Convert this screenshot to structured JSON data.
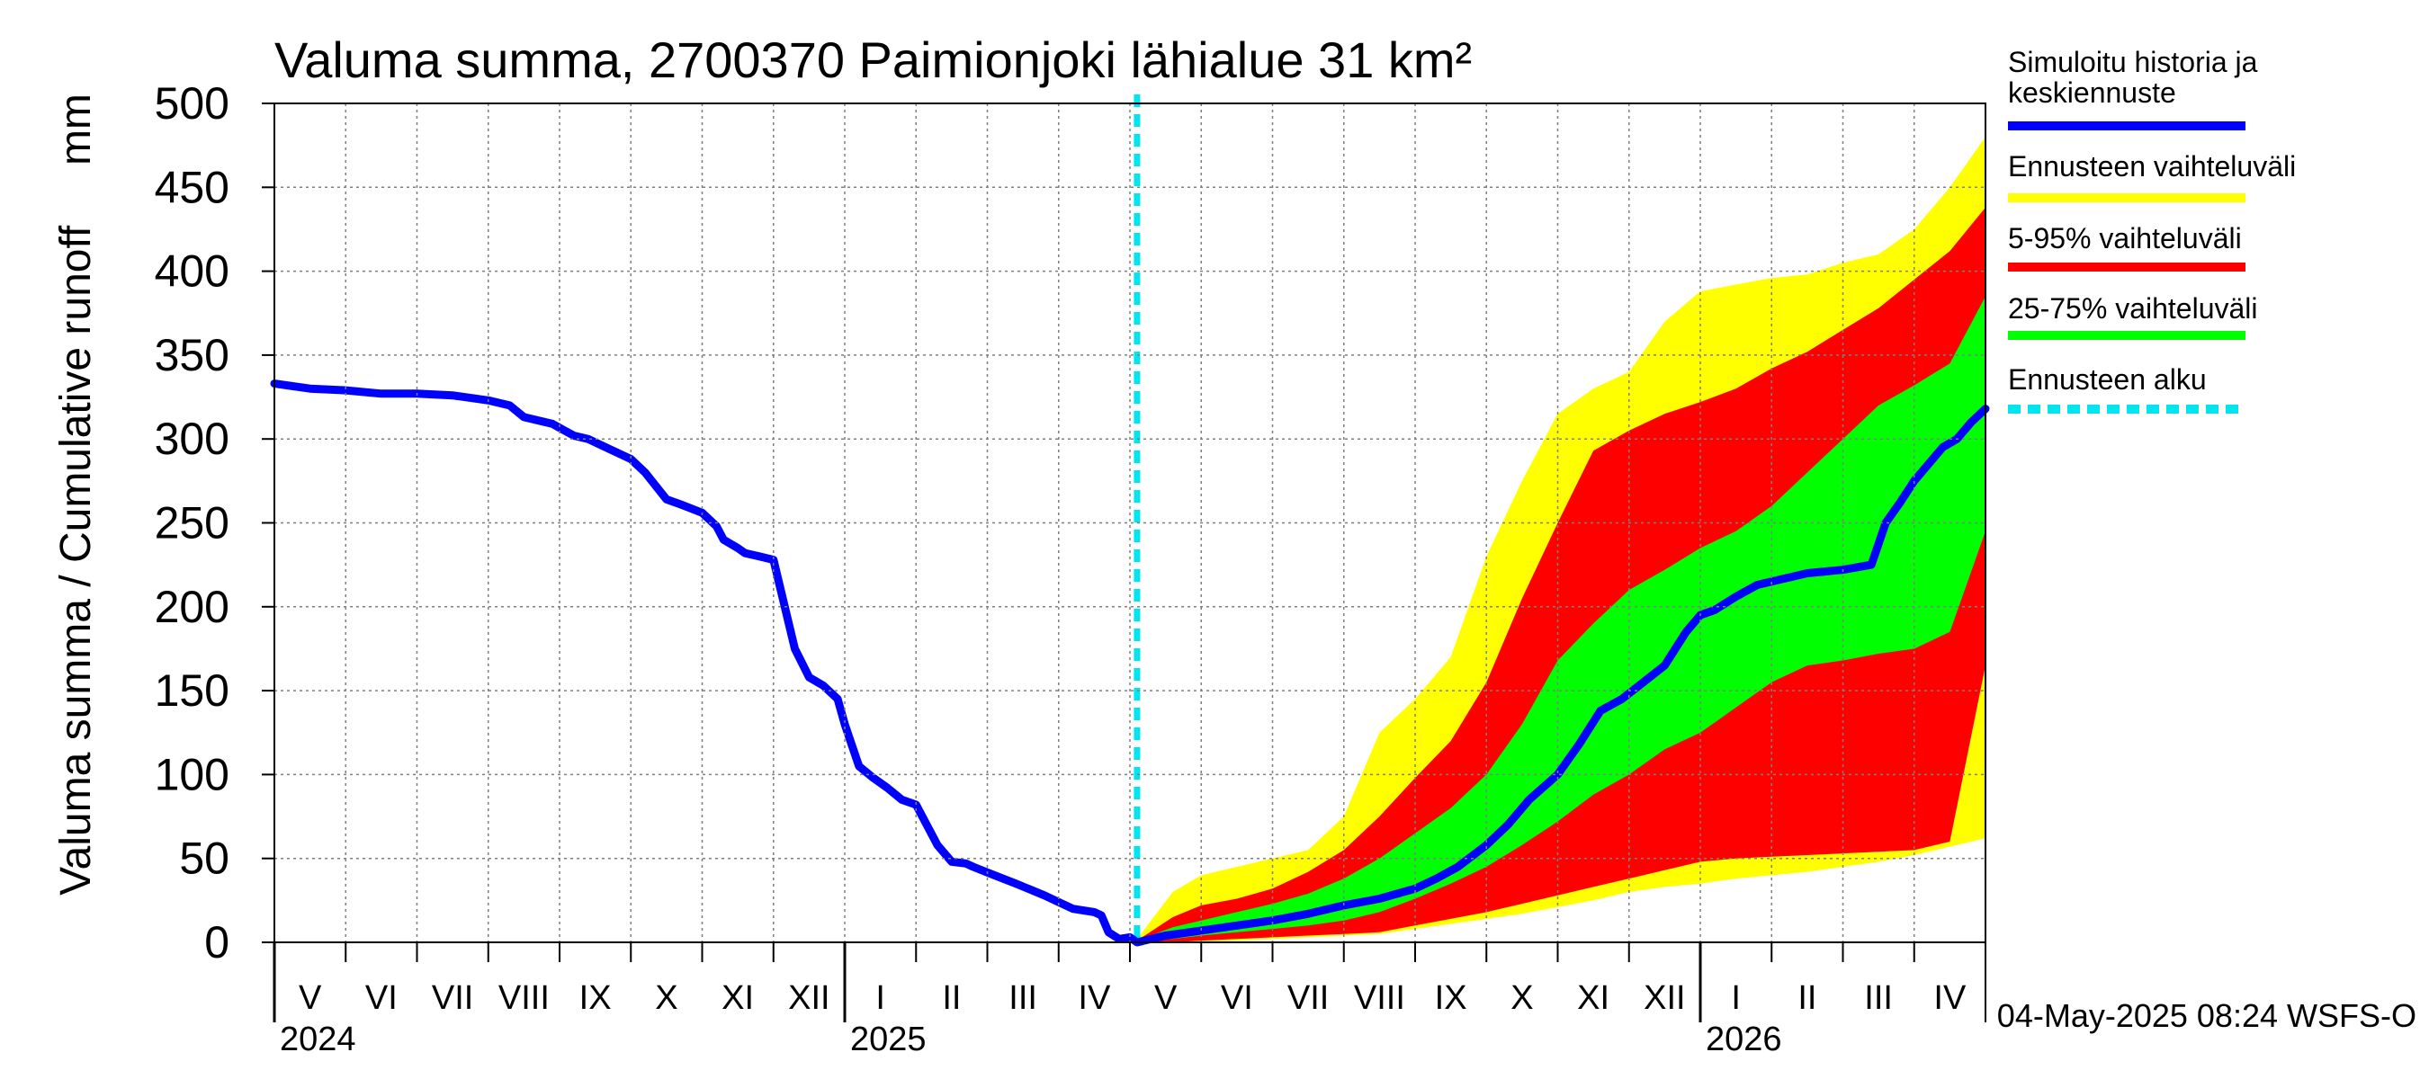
{
  "chart_data": {
    "type": "area",
    "title": "Valuma summa, 2700370 Paimionjoki lähialue 31 km²",
    "ylabel": "Valuma summa / Cumulative runoff     mm",
    "ylim": [
      0,
      500
    ],
    "yticks": [
      0,
      50,
      100,
      150,
      200,
      250,
      300,
      350,
      400,
      450,
      500
    ],
    "xlim_months": [
      0,
      24
    ],
    "month_labels": [
      "V",
      "VI",
      "VII",
      "VIII",
      "IX",
      "X",
      "XI",
      "XII",
      "I",
      "II",
      "III",
      "IV",
      "V",
      "VI",
      "VII",
      "VIII",
      "IX",
      "X",
      "XI",
      "XII",
      "I",
      "II",
      "III",
      "IV"
    ],
    "years": [
      {
        "label": "2024",
        "month_index": 0
      },
      {
        "label": "2025",
        "month_index": 8
      },
      {
        "label": "2026",
        "month_index": 20
      }
    ],
    "forecast_start_month": 12.1,
    "timestamp": "04-May-2025 08:24 WSFS-O",
    "colors": {
      "history": "#0000ff",
      "range_full": "#ffff00",
      "range_5_95": "#ff0000",
      "range_25_75": "#00ff00",
      "forecast_start": "#00e5ee",
      "grid": "#7f7f7f"
    },
    "legend": [
      {
        "label": "Simuloitu historia ja keskiennuste",
        "color": "#0000ff",
        "style": "solid"
      },
      {
        "label": "Ennusteen vaihteluväli",
        "color": "#ffff00",
        "style": "solid"
      },
      {
        "label": "5-95% vaihteluväli",
        "color": "#ff0000",
        "style": "solid"
      },
      {
        "label": "25-75% vaihteluväli",
        "color": "#00ff00",
        "style": "solid"
      },
      {
        "label": "Ennusteen alku",
        "color": "#00e5ee",
        "style": "dashed"
      }
    ],
    "series": [
      {
        "name": "Simuloitu historia ja keskiennuste",
        "x": [
          0,
          0.5,
          1,
          1.5,
          2,
          2.5,
          3,
          3.3,
          3.5,
          3.9,
          4.2,
          4.4,
          4.7,
          5,
          5.2,
          5.5,
          5.7,
          6,
          6.2,
          6.3,
          6.5,
          6.6,
          6.8,
          7,
          7.3,
          7.5,
          7.7,
          7.9,
          8,
          8.2,
          8.4,
          8.6,
          8.8,
          9,
          9.3,
          9.5,
          9.7,
          9.8,
          10.1,
          10.4,
          10.8,
          11.2,
          11.5,
          11.6,
          11.7,
          11.85,
          12.0,
          12.1,
          12.5,
          13,
          13.5,
          14,
          14.5,
          15,
          15.5,
          16,
          16.3,
          16.6,
          17,
          17.3,
          17.6,
          18,
          18.3,
          18.6,
          18.9,
          19.2,
          19.5,
          19.8,
          20,
          20.2,
          20.5,
          20.8,
          21,
          21.5,
          22,
          22.4,
          22.6,
          22.8,
          23,
          23.2,
          23.4,
          23.6,
          23.8,
          24
        ],
        "values": [
          333,
          330,
          329,
          327,
          327,
          326,
          323,
          320,
          313,
          309,
          302,
          300,
          294,
          288,
          280,
          264,
          261,
          256,
          248,
          240,
          235,
          232,
          230,
          228,
          175,
          158,
          153,
          145,
          130,
          105,
          98,
          92,
          85,
          82,
          58,
          48,
          47,
          45,
          40,
          35,
          28,
          20,
          18,
          16,
          6,
          2,
          3,
          0,
          4,
          7,
          10,
          13,
          17,
          22,
          26,
          32,
          38,
          45,
          58,
          70,
          85,
          100,
          118,
          138,
          145,
          155,
          165,
          185,
          195,
          198,
          206,
          213,
          215,
          220,
          222,
          225,
          250,
          262,
          275,
          285,
          295,
          300,
          310,
          318
        ]
      },
      {
        "name": "Ennusteen vaihteluväli",
        "x": [
          12.1,
          12.6,
          13,
          13.5,
          14,
          14.5,
          15,
          15.5,
          16,
          16.5,
          17,
          17.5,
          18,
          18.5,
          19,
          19.5,
          20,
          20.5,
          21,
          21.5,
          22,
          22.5,
          23,
          23.5,
          24
        ],
        "upper": [
          2,
          30,
          40,
          45,
          50,
          55,
          75,
          125,
          145,
          170,
          230,
          275,
          315,
          330,
          340,
          370,
          388,
          392,
          396,
          398,
          405,
          410,
          425,
          450,
          480
        ],
        "lower": [
          0,
          0,
          0,
          1,
          2,
          3,
          4,
          5,
          8,
          11,
          14,
          17,
          21,
          25,
          30,
          33,
          35,
          38,
          40,
          42,
          45,
          48,
          52,
          57,
          62
        ]
      },
      {
        "name": "5-95% vaihteluväli",
        "x": [
          12.1,
          12.6,
          13,
          13.5,
          14,
          14.5,
          15,
          15.5,
          16,
          16.5,
          17,
          17.5,
          18,
          18.5,
          19,
          19.5,
          20,
          20.5,
          21,
          21.5,
          22,
          22.5,
          23,
          23.5,
          24
        ],
        "upper": [
          1,
          15,
          22,
          26,
          32,
          42,
          55,
          75,
          98,
          120,
          155,
          205,
          250,
          293,
          305,
          315,
          322,
          330,
          342,
          352,
          365,
          378,
          395,
          412,
          438
        ],
        "lower": [
          0,
          0,
          1,
          2,
          3,
          4,
          5,
          6,
          10,
          14,
          18,
          23,
          28,
          33,
          38,
          43,
          48,
          50,
          51,
          52,
          53,
          54,
          55,
          60,
          165
        ]
      },
      {
        "name": "25-75% vaihteluväli",
        "x": [
          12.1,
          12.6,
          13,
          13.5,
          14,
          14.5,
          15,
          15.5,
          16,
          16.5,
          17,
          17.5,
          18,
          18.5,
          19,
          19.5,
          20,
          20.5,
          21,
          21.5,
          22,
          22.5,
          23,
          23.5,
          24
        ],
        "upper": [
          1,
          9,
          13,
          18,
          23,
          29,
          38,
          50,
          65,
          80,
          100,
          130,
          168,
          190,
          210,
          222,
          235,
          245,
          260,
          280,
          300,
          320,
          332,
          345,
          385
        ],
        "lower": [
          0,
          2,
          4,
          6,
          8,
          10,
          13,
          18,
          26,
          35,
          45,
          58,
          72,
          88,
          100,
          115,
          125,
          140,
          155,
          165,
          168,
          172,
          175,
          185,
          245
        ]
      }
    ]
  }
}
